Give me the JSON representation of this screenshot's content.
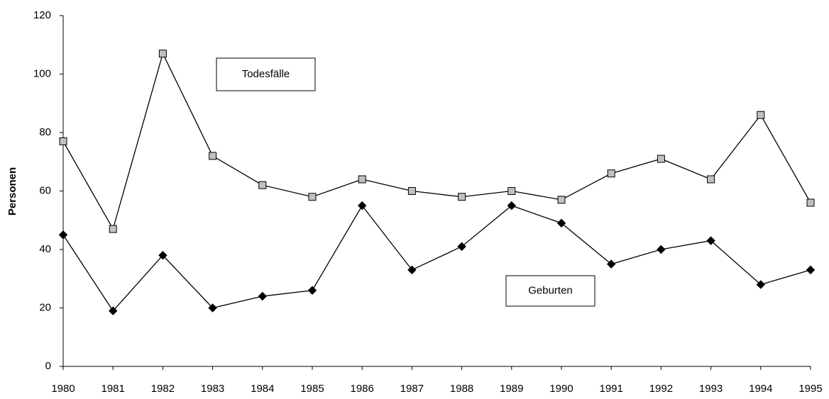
{
  "chart_data": {
    "type": "line",
    "ylabel": "Personen",
    "x": [
      1980,
      1981,
      1982,
      1983,
      1984,
      1985,
      1986,
      1987,
      1988,
      1989,
      1990,
      1991,
      1992,
      1993,
      1994,
      1995
    ],
    "xlim": [
      1980,
      1995
    ],
    "xticks": [
      1980,
      1981,
      1982,
      1983,
      1984,
      1985,
      1986,
      1987,
      1988,
      1989,
      1990,
      1991,
      1992,
      1993,
      1994,
      1995
    ],
    "ylim": [
      0,
      120
    ],
    "yticks": [
      0,
      20,
      40,
      60,
      80,
      100,
      120
    ],
    "grid": false,
    "series": [
      {
        "name": "Todesfälle",
        "color": "#000000",
        "marker": "square",
        "marker_color": "#c0c0c0",
        "values": [
          77,
          47,
          107,
          72,
          62,
          58,
          64,
          60,
          58,
          60,
          57,
          66,
          71,
          64,
          86,
          56
        ]
      },
      {
        "name": "Geburten",
        "color": "#000000",
        "marker": "diamond",
        "marker_color": "#000000",
        "values": [
          45,
          19,
          38,
          20,
          24,
          26,
          55,
          33,
          41,
          55,
          49,
          35,
          40,
          43,
          28,
          33
        ]
      }
    ]
  }
}
